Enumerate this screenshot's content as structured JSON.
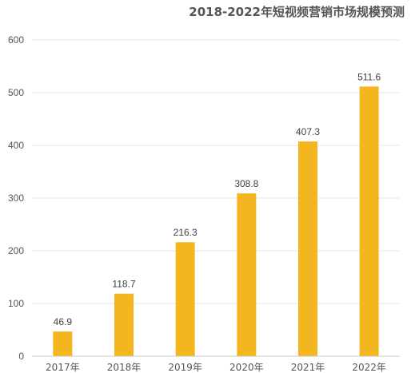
{
  "chart_data": {
    "type": "bar",
    "title": "2018-2022年短视频营销市场规模预测",
    "xlabel": "",
    "ylabel": "",
    "categories": [
      "2017年",
      "2018年",
      "2019年",
      "2020年",
      "2021年",
      "2022年"
    ],
    "values": [
      46.9,
      118.7,
      216.3,
      308.8,
      407.3,
      511.6
    ],
    "data_labels": [
      "46.9",
      "118.7",
      "216.3",
      "308.8",
      "407.3",
      "511.6"
    ],
    "ylim": [
      0,
      600
    ],
    "yticks": [
      "0",
      "100",
      "200",
      "300",
      "400",
      "500",
      "600"
    ],
    "grid": true,
    "legend": "none",
    "bar_color": "#f3b61f"
  }
}
